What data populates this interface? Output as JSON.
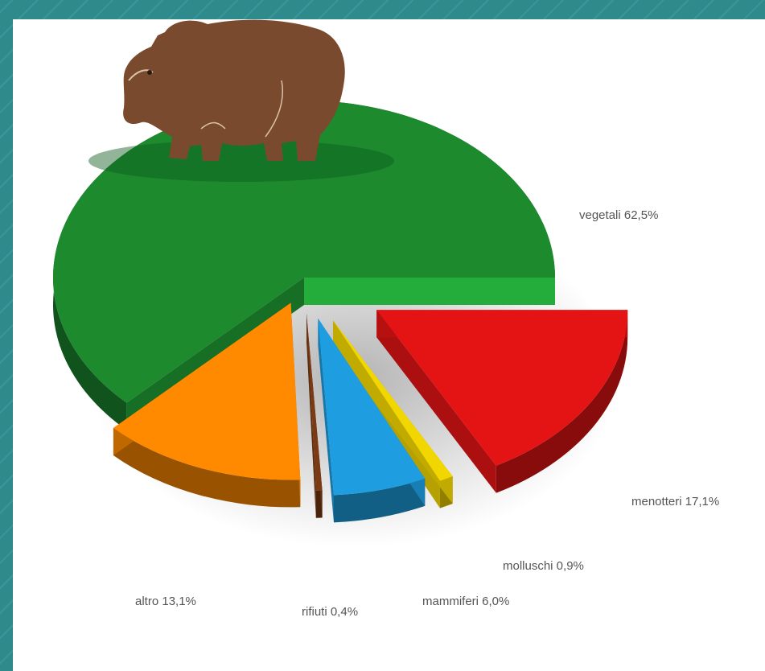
{
  "chart_data": {
    "type": "pie",
    "style": "3d-exploded",
    "title": "",
    "legend": "none",
    "slices": [
      {
        "label": "vegetali 62,5%",
        "value": 62.5,
        "color": "#1d8a2e"
      },
      {
        "label": "menotteri 17,1%",
        "value": 17.1,
        "color": "#e41414"
      },
      {
        "label": "molluschi 0,9%",
        "value": 0.9,
        "color": "#f2d600"
      },
      {
        "label": "mammiferi 6,0%",
        "value": 6.0,
        "color": "#1e9ee0"
      },
      {
        "label": "rifiuti 0,4%",
        "value": 0.4,
        "color": "#7a3a14"
      },
      {
        "label": "altro 13,1%",
        "value": 13.1,
        "color": "#ff8a00"
      }
    ]
  },
  "decoration": {
    "icon": "bear-icon",
    "color": "#7a4a2e"
  }
}
